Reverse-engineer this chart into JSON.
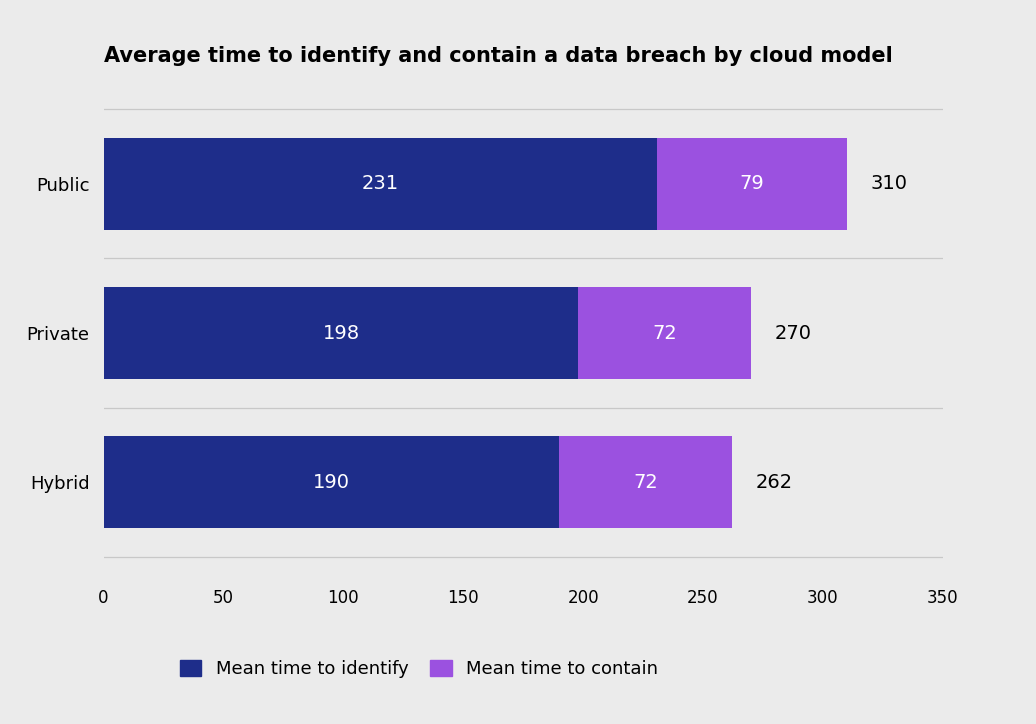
{
  "title": "Average time to identify and contain a data breach by cloud model",
  "categories": [
    "Hybrid",
    "Private",
    "Public"
  ],
  "identify_values": [
    190,
    198,
    231
  ],
  "contain_values": [
    72,
    72,
    79
  ],
  "totals": [
    262,
    270,
    310
  ],
  "identify_color": "#1e2d8a",
  "contain_color": "#9b51e0",
  "background_color": "#ebebeb",
  "bar_height": 0.62,
  "xlim": [
    0,
    350
  ],
  "xticks": [
    0,
    50,
    100,
    150,
    200,
    250,
    300,
    350
  ],
  "legend_labels": [
    "Mean time to identify",
    "Mean time to contain"
  ],
  "title_fontsize": 15,
  "label_fontsize": 13,
  "tick_fontsize": 12,
  "bar_label_fontsize": 14,
  "total_fontsize": 14
}
